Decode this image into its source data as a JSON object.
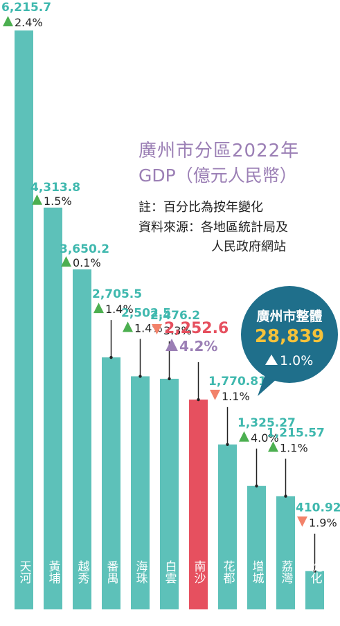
{
  "chart_data": {
    "type": "bar",
    "title": "廣州市分區2022年",
    "subtitle": "GDP（億元人民幣）",
    "notes": [
      "註：百分比為按年變化",
      "資料來源：各地區統計局及",
      "人民政府網站"
    ],
    "categories": [
      "天河",
      "黃埔",
      "越秀",
      "番禺",
      "海珠",
      "白雲",
      "南沙",
      "花都",
      "增城",
      "荔灣",
      "從化"
    ],
    "values": [
      6215.7,
      4313.8,
      3650.2,
      2705.5,
      2502.5,
      2476.2,
      2252.6,
      1770.81,
      1325.27,
      1215.57,
      410.92
    ],
    "value_labels": [
      "6,215.7",
      "4,313.8",
      "3,650.2",
      "2,705.5",
      "2,502.5",
      "2,476.2",
      "2,252.6",
      "1,770.81",
      "1,325.27",
      "1,215.57",
      "410.92"
    ],
    "change_labels": [
      "2.4%",
      "1.5%",
      "0.1%",
      "1.4%",
      "1.4%",
      "3.3%",
      "4.2%",
      "1.1%",
      "4.0%",
      "1.1%",
      "1.9%"
    ],
    "change_direction": [
      "up",
      "up",
      "up",
      "up",
      "up",
      "down",
      "up",
      "down",
      "up",
      "up",
      "down"
    ],
    "highlight_index": 6,
    "ylim": [
      0,
      6215.7
    ],
    "total": {
      "label": "廣州市整體",
      "value": "28,839",
      "change": "1.0%",
      "direction": "up"
    },
    "colors": {
      "bar": "#5dc1b9",
      "highlight": "#e6505f",
      "value_text": "#3fb8ae",
      "highlight_text": "#e6505f",
      "highlight_change": "#9b7fb5",
      "up": "#4caf50",
      "down": "#f2826a",
      "title": "#9b7fb5",
      "bubble": "#1f6f8b",
      "bubble_value": "#f5c23a"
    }
  }
}
